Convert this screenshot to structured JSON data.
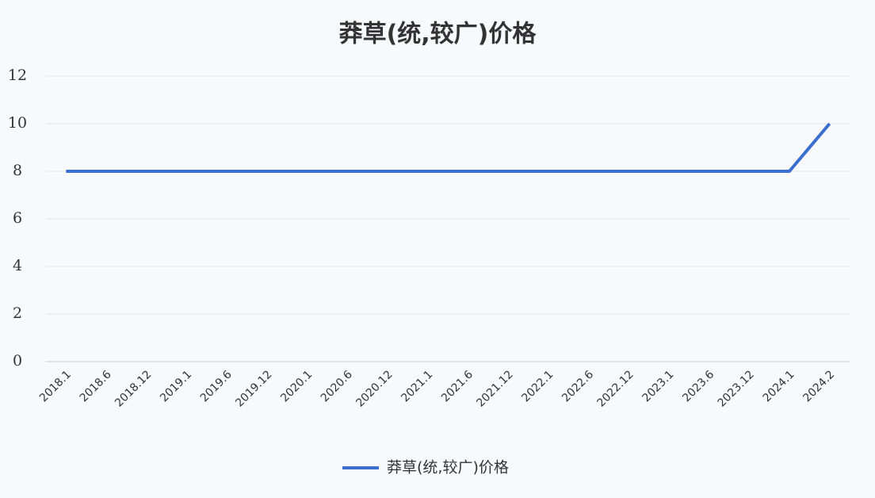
{
  "chart_data": {
    "type": "line",
    "title": "莽草(统,较广)价格",
    "categories": [
      "2018.1",
      "2018.6",
      "2018.12",
      "2019.1",
      "2019.6",
      "2019.12",
      "2020.1",
      "2020.6",
      "2020.12",
      "2021.1",
      "2021.6",
      "2021.12",
      "2022.1",
      "2022.6",
      "2022.12",
      "2023.1",
      "2023.6",
      "2023.12",
      "2024.1",
      "2024.2"
    ],
    "series": [
      {
        "name": "莽草(统,较广)价格",
        "color": "#3a6fcf",
        "values": [
          8,
          8,
          8,
          8,
          8,
          8,
          8,
          8,
          8,
          8,
          8,
          8,
          8,
          8,
          8,
          8,
          8,
          8,
          8,
          10
        ]
      }
    ],
    "ylim": [
      0,
      12
    ],
    "yticks": [
      0,
      2,
      4,
      6,
      8,
      10,
      12
    ],
    "grid": true,
    "legend": "bottom"
  }
}
